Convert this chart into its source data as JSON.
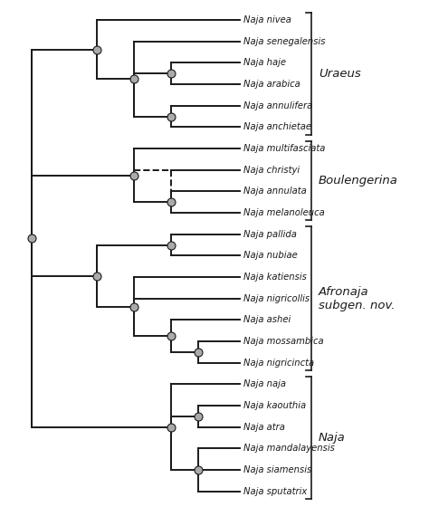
{
  "background_color": "#ffffff",
  "node_color": "#aaaaaa",
  "line_color": "#1a1a1a",
  "text_color": "#1a1a1a",
  "lw": 1.4,
  "taxa": [
    "Naja nivea",
    "Naja senegalensis",
    "Naja haje",
    "Naja arabica",
    "Naja annulifera",
    "Naja anchietae",
    "Naja multifasciata",
    "Naja christyi",
    "Naja annulata",
    "Naja melanoleuca",
    "Naja pallida",
    "Naja nubiae",
    "Naja katiensis",
    "Naja nigricollis",
    "Naja ashei",
    "Naja mossambica",
    "Naja nigricincta",
    "Naja naja",
    "Naja kaouthia",
    "Naja atra",
    "Naja mandalayensis",
    "Naja siamensis",
    "Naja sputatrix"
  ],
  "group_ranges": [
    [
      0,
      5
    ],
    [
      6,
      9
    ],
    [
      10,
      16
    ],
    [
      17,
      22
    ]
  ],
  "group_names": [
    "Uraeus",
    "Boulengerina",
    "Afronaja\nsubgen. nov.",
    "Naja"
  ],
  "figsize": [
    4.74,
    5.6
  ],
  "dpi": 100
}
